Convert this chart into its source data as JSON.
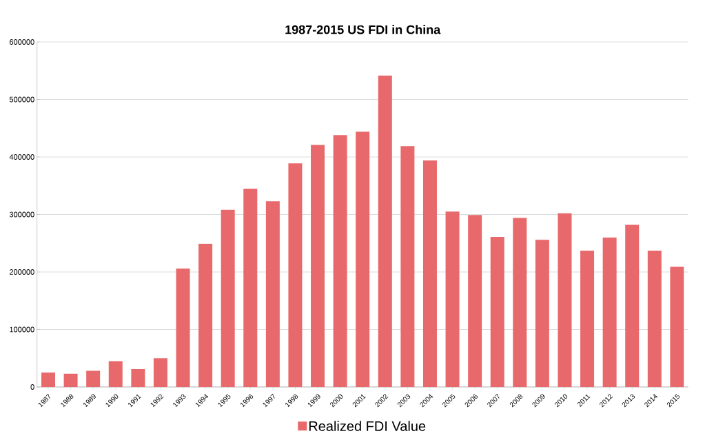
{
  "chart_data": {
    "type": "bar",
    "title": "1987-2015 US FDI in China",
    "categories": [
      "1987",
      "1988",
      "1989",
      "1990",
      "1991",
      "1992",
      "1993",
      "1994",
      "1995",
      "1996",
      "1997",
      "1998",
      "1999",
      "2000",
      "2001",
      "2002",
      "2003",
      "2004",
      "2005",
      "2006",
      "2007",
      "2008",
      "2009",
      "2010",
      "2011",
      "2012",
      "2013",
      "2014",
      "2015"
    ],
    "series": [
      {
        "name": "Realized FDI Value",
        "color": "#e8696b",
        "values": [
          25000,
          23000,
          28000,
          45000,
          31000,
          50000,
          206000,
          249000,
          308000,
          345000,
          323000,
          389000,
          421000,
          438000,
          444000,
          542000,
          419000,
          394000,
          305000,
          299000,
          261000,
          294000,
          256000,
          302000,
          237000,
          260000,
          282000,
          237000,
          209000
        ]
      }
    ],
    "ylim": [
      0,
      600000
    ],
    "yticks": [
      0,
      100000,
      200000,
      300000,
      400000,
      500000,
      600000
    ],
    "grid": "y",
    "legend": "bottom"
  }
}
